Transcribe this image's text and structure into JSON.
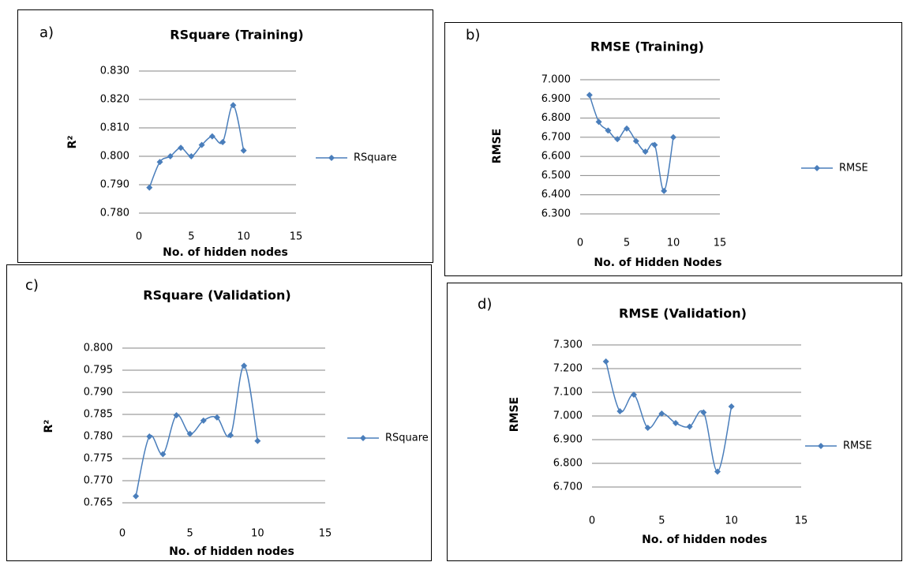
{
  "chart_data": [
    {
      "type": "line",
      "panel_label": "a)",
      "title": "RSquare (Training)",
      "x_label": "No. of hidden nodes",
      "y_label": "R²",
      "x": [
        1,
        2,
        3,
        4,
        5,
        6,
        7,
        8,
        9,
        10
      ],
      "series": [
        {
          "name": "RSquare",
          "color": "#4a7ebb",
          "values": [
            0.789,
            0.798,
            0.8,
            0.803,
            0.8,
            0.804,
            0.807,
            0.805,
            0.818,
            0.802
          ]
        }
      ],
      "xlim": [
        0,
        15
      ],
      "xticks": [
        0,
        5,
        10,
        15
      ],
      "ylim": [
        0.78,
        0.83
      ],
      "yticks": [
        {
          "value": 0.78,
          "label": "0.780"
        },
        {
          "value": 0.79,
          "label": "0.790"
        },
        {
          "value": 0.8,
          "label": "0.800"
        },
        {
          "value": 0.81,
          "label": "0.810"
        },
        {
          "value": 0.82,
          "label": "0.820"
        },
        {
          "value": 0.83,
          "label": "0.830"
        }
      ],
      "grid": true,
      "legend": "right"
    },
    {
      "type": "line",
      "panel_label": "b)",
      "title": "RMSE (Training)",
      "x_label": "No. of Hidden Nodes",
      "y_label": "RMSE",
      "x": [
        1,
        2,
        3,
        4,
        5,
        6,
        7,
        8,
        9,
        10
      ],
      "series": [
        {
          "name": "RMSE",
          "color": "#4a7ebb",
          "values": [
            6.92,
            6.78,
            6.735,
            6.69,
            6.745,
            6.68,
            6.625,
            6.66,
            6.42,
            6.7
          ]
        }
      ],
      "xlim": [
        0,
        15
      ],
      "xticks": [
        0,
        5,
        10,
        15
      ],
      "ylim": [
        6.3,
        7.0
      ],
      "yticks": [
        {
          "value": 6.3,
          "label": "6.300"
        },
        {
          "value": 6.4,
          "label": "6.400"
        },
        {
          "value": 6.5,
          "label": "6.500"
        },
        {
          "value": 6.6,
          "label": "6.600"
        },
        {
          "value": 6.7,
          "label": "6.700"
        },
        {
          "value": 6.8,
          "label": "6.800"
        },
        {
          "value": 6.9,
          "label": "6.900"
        },
        {
          "value": 7.0,
          "label": "7.000"
        }
      ],
      "grid": true,
      "legend": "right"
    },
    {
      "type": "line",
      "panel_label": "c)",
      "title": "RSquare (Validation)",
      "x_label": "No. of hidden nodes",
      "y_label": "R²",
      "x": [
        1,
        2,
        3,
        4,
        5,
        6,
        7,
        8,
        9,
        10
      ],
      "series": [
        {
          "name": "RSquare",
          "color": "#4a7ebb",
          "values": [
            0.7665,
            0.78,
            0.776,
            0.7848,
            0.7806,
            0.7836,
            0.7843,
            0.7803,
            0.796,
            0.779
          ]
        }
      ],
      "xlim": [
        0,
        15
      ],
      "xticks": [
        0,
        5,
        10,
        15
      ],
      "ylim": [
        0.765,
        0.8
      ],
      "yticks": [
        {
          "value": 0.765,
          "label": "0.765"
        },
        {
          "value": 0.77,
          "label": "0.770"
        },
        {
          "value": 0.775,
          "label": "0.775"
        },
        {
          "value": 0.78,
          "label": "0.780"
        },
        {
          "value": 0.785,
          "label": "0.785"
        },
        {
          "value": 0.79,
          "label": "0.790"
        },
        {
          "value": 0.795,
          "label": "0.795"
        },
        {
          "value": 0.8,
          "label": "0.800"
        }
      ],
      "grid": true,
      "legend": "right"
    },
    {
      "type": "line",
      "panel_label": "d)",
      "title": "RMSE (Validation)",
      "x_label": "No. of hidden nodes",
      "y_label": "RMSE",
      "x": [
        1,
        2,
        3,
        4,
        5,
        6,
        7,
        8,
        9,
        10
      ],
      "series": [
        {
          "name": "RMSE",
          "color": "#4a7ebb",
          "values": [
            7.23,
            7.02,
            7.09,
            6.95,
            7.01,
            6.97,
            6.955,
            7.015,
            6.765,
            7.04
          ]
        }
      ],
      "xlim": [
        0,
        15
      ],
      "xticks": [
        0,
        5,
        10,
        15
      ],
      "ylim": [
        6.7,
        7.3
      ],
      "yticks": [
        {
          "value": 6.7,
          "label": "6.700"
        },
        {
          "value": 6.8,
          "label": "6.800"
        },
        {
          "value": 6.9,
          "label": "6.900"
        },
        {
          "value": 7.0,
          "label": "7.000"
        },
        {
          "value": 7.1,
          "label": "7.100"
        },
        {
          "value": 7.2,
          "label": "7.200"
        },
        {
          "value": 7.3,
          "label": "7.300"
        }
      ],
      "grid": true,
      "legend": "right"
    }
  ]
}
